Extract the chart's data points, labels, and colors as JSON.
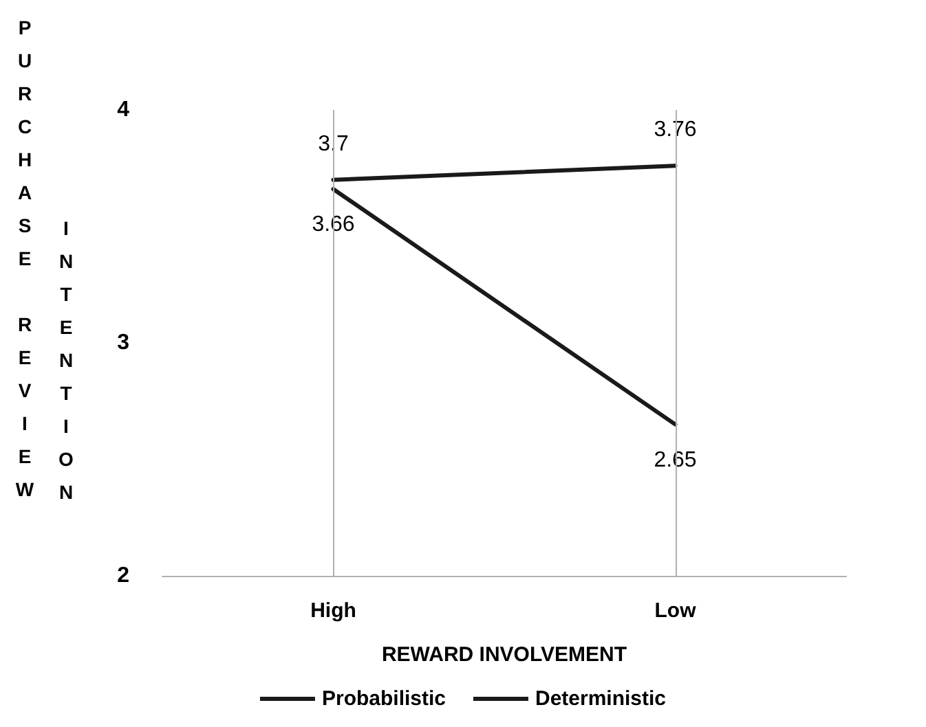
{
  "chart_data": {
    "type": "line",
    "xlabel": "REWARD INVOLVEMENT",
    "ylabel": "PURCHASE REVIEW INTENTION",
    "categories": [
      "High",
      "Low"
    ],
    "series": [
      {
        "name": "Probabilistic",
        "color": "#1a1a1a",
        "values": [
          3.7,
          3.76
        ]
      },
      {
        "name": "Deterministic",
        "color": "#1a1a1a",
        "values": [
          3.66,
          2.65
        ]
      }
    ],
    "ylim": [
      2,
      4
    ],
    "yticks": [
      2,
      3,
      4
    ],
    "grid": "x",
    "legend": "bottom",
    "marker": "none",
    "line_style": "solid",
    "data_labels": true
  }
}
